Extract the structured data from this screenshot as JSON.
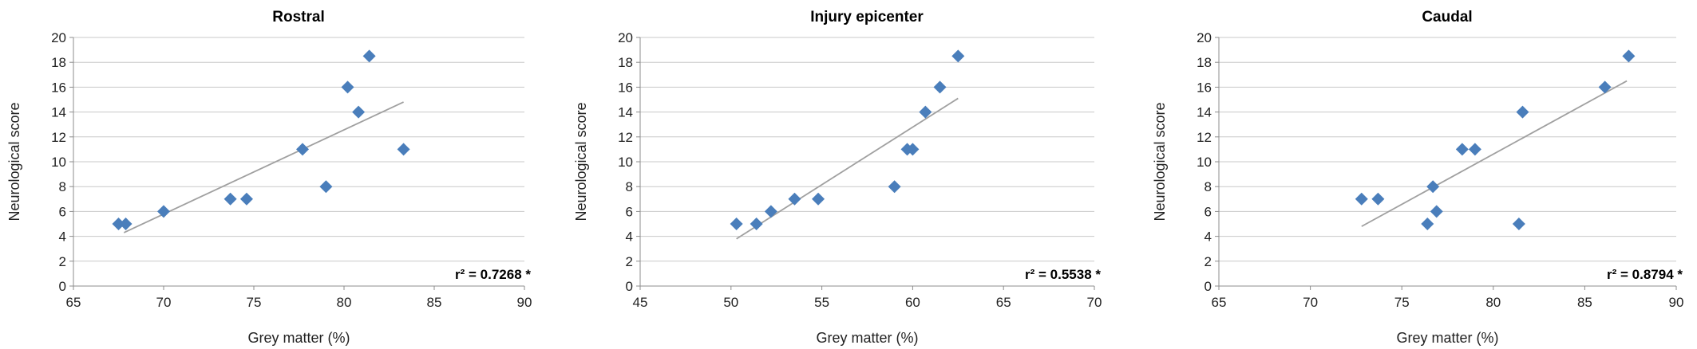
{
  "chart_data": [
    {
      "type": "scatter",
      "title": "Rostral",
      "xlabel": "Grey matter  (%)",
      "ylabel": "Neurological score",
      "xlim": [
        65,
        90
      ],
      "ylim": [
        0,
        20
      ],
      "xticks": [
        "65",
        "70",
        "75",
        "80",
        "85",
        "90"
      ],
      "yticks": [
        "0",
        "2",
        "4",
        "6",
        "8",
        "10",
        "12",
        "14",
        "16",
        "18",
        "20"
      ],
      "grid": "horizontal",
      "marker_color": "#4a7ebb",
      "annotation": "r² = 0.7268 *",
      "trendline": {
        "x": [
          67.8,
          83.3
        ],
        "y": [
          4.3,
          14.8
        ]
      },
      "series": [
        {
          "x": [
            67.5,
            67.9,
            70.0,
            73.7,
            74.6,
            77.7,
            79.0,
            80.2,
            80.8,
            81.4,
            83.3
          ],
          "y": [
            5,
            5,
            6,
            7,
            7,
            11,
            8,
            16,
            14,
            18.5,
            11
          ]
        }
      ]
    },
    {
      "type": "scatter",
      "title": "Injury epicenter",
      "xlabel": "Grey matter  (%)",
      "ylabel": "Neurological score",
      "xlim": [
        45,
        70
      ],
      "ylim": [
        0,
        20
      ],
      "xticks": [
        "45",
        "50",
        "55",
        "60",
        "65",
        "70"
      ],
      "yticks": [
        "0",
        "2",
        "4",
        "6",
        "8",
        "10",
        "12",
        "14",
        "16",
        "18",
        "20"
      ],
      "grid": "horizontal",
      "marker_color": "#4a7ebb",
      "annotation": "r² = 0.5538 *",
      "trendline": {
        "x": [
          50.3,
          62.5
        ],
        "y": [
          3.8,
          15.1
        ]
      },
      "series": [
        {
          "x": [
            50.3,
            51.4,
            52.2,
            53.5,
            54.8,
            59.0,
            59.7,
            60.0,
            60.7,
            61.5,
            62.5
          ],
          "y": [
            5,
            5,
            6,
            7,
            7,
            8,
            11,
            11,
            14,
            16,
            18.5
          ]
        }
      ]
    },
    {
      "type": "scatter",
      "title": "Caudal",
      "xlabel": "Grey matter  (%)",
      "ylabel": "Neurological score",
      "xlim": [
        65,
        90
      ],
      "ylim": [
        0,
        20
      ],
      "xticks": [
        "65",
        "70",
        "75",
        "80",
        "85",
        "90"
      ],
      "yticks": [
        "0",
        "2",
        "4",
        "6",
        "8",
        "10",
        "12",
        "14",
        "16",
        "18",
        "20"
      ],
      "grid": "horizontal",
      "marker_color": "#4a7ebb",
      "annotation": "r² = 0.8794 *",
      "trendline": {
        "x": [
          72.8,
          87.3
        ],
        "y": [
          4.8,
          16.5
        ]
      },
      "series": [
        {
          "x": [
            72.8,
            73.7,
            76.4,
            76.7,
            76.9,
            78.3,
            79.0,
            81.4,
            81.6,
            86.1,
            87.4
          ],
          "y": [
            7,
            7,
            5,
            8,
            6,
            11,
            11,
            5,
            14,
            16,
            18.5
          ]
        }
      ]
    }
  ]
}
